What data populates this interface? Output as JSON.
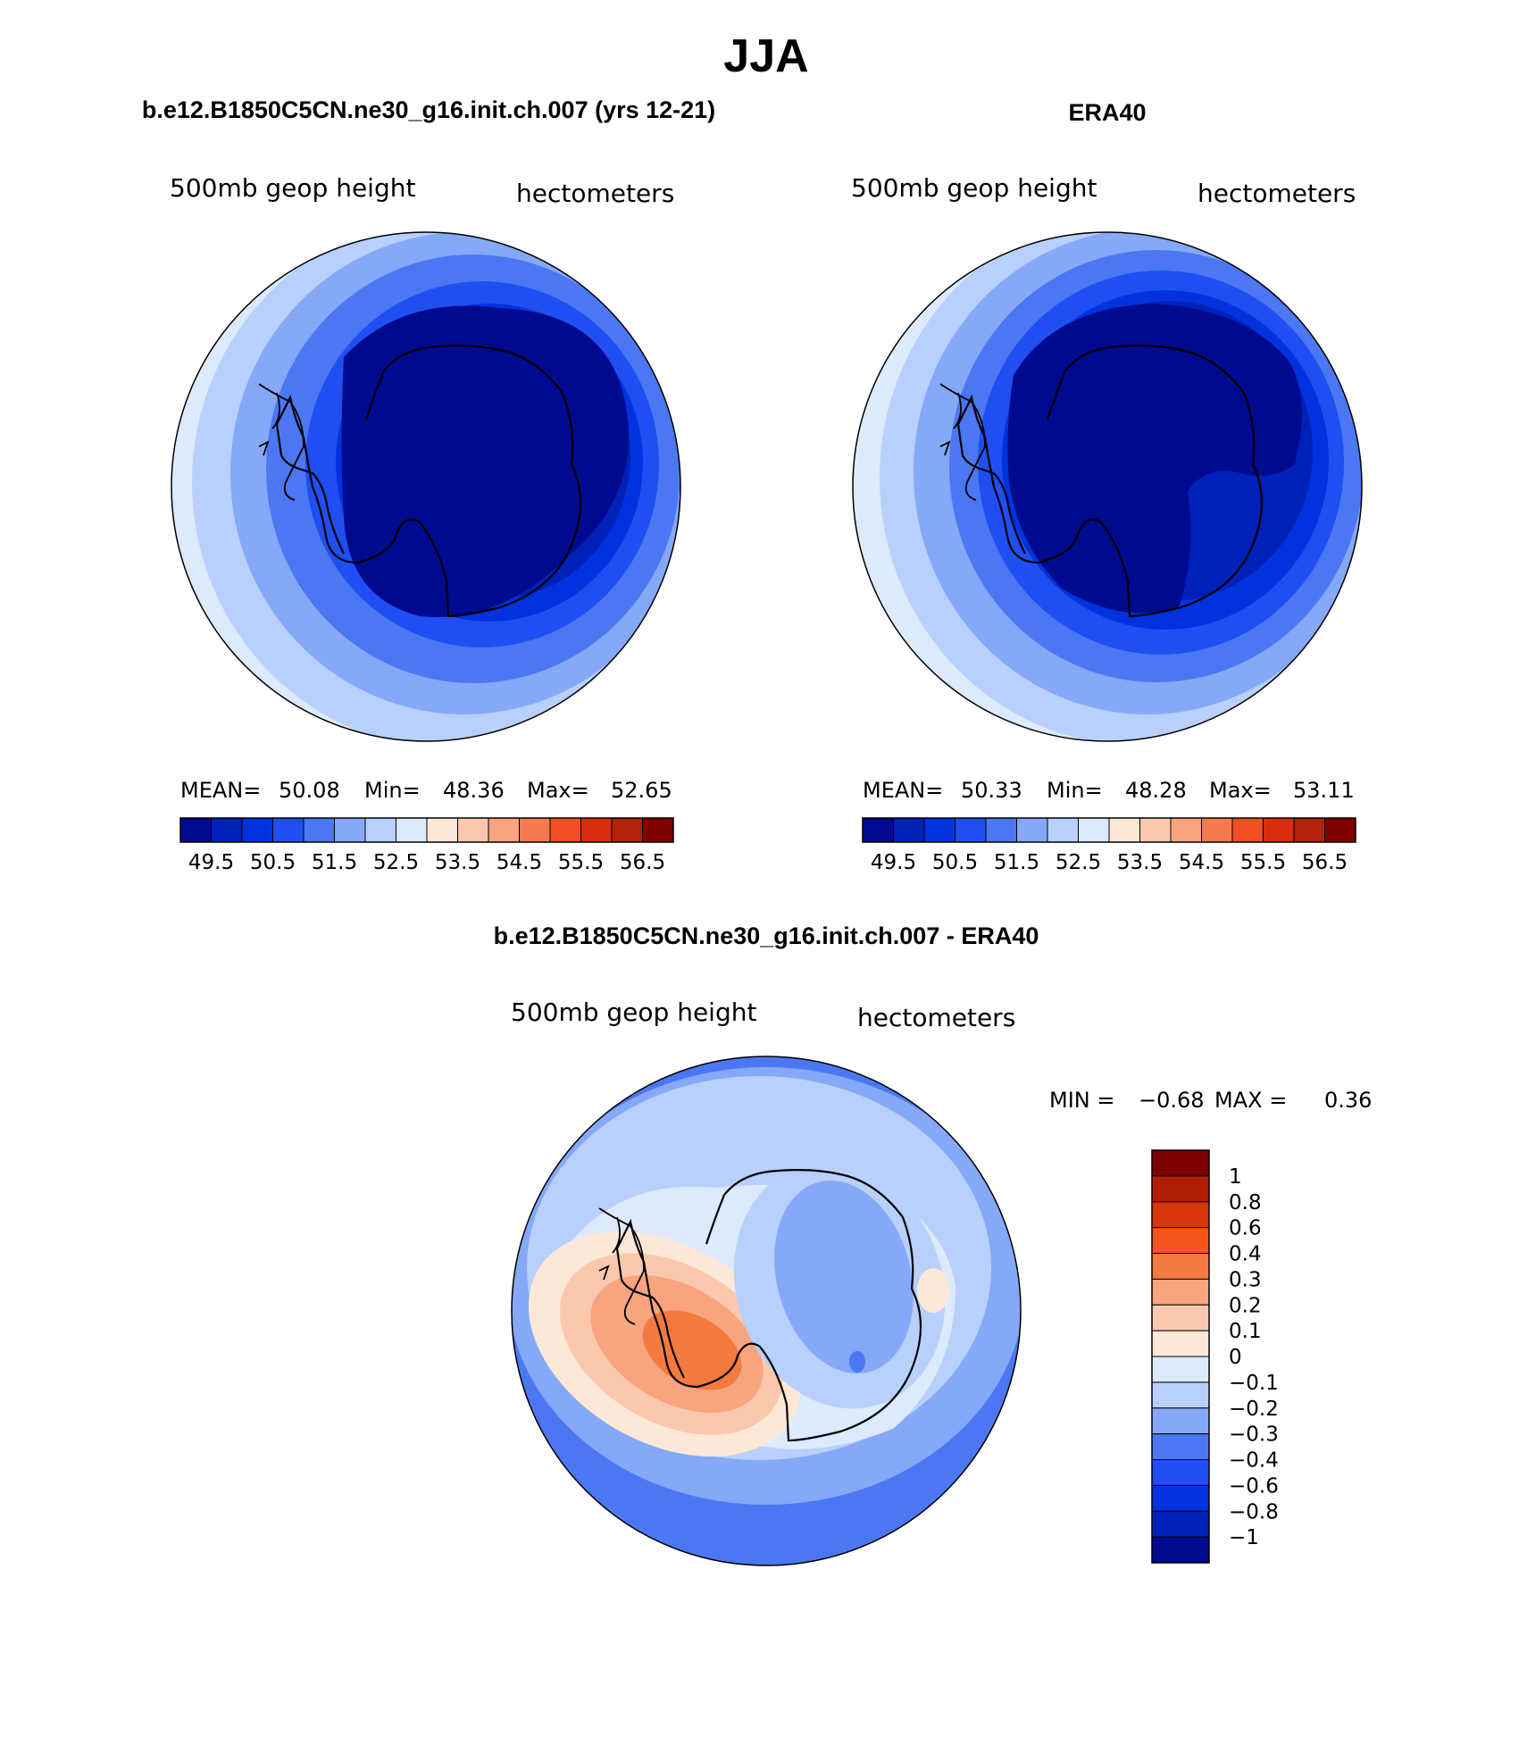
{
  "page_title": "JJA",
  "chart_data": [
    {
      "type": "polar-contour-map",
      "title": "b.e12.B1850C5CN.ne30_g16.init.ch.007 (yrs 12-21)",
      "left_label": "500mb geop height",
      "right_label": "hectometers",
      "stats": {
        "mean_label": "MEAN=",
        "mean": "50.08",
        "min_label": "Min=",
        "min": "48.36",
        "max_label": "Max=",
        "max": "52.65"
      },
      "colorbar_ticks": [
        "49.5",
        "50.5",
        "51.5",
        "52.5",
        "53.5",
        "54.5",
        "55.5",
        "56.5"
      ],
      "colorbar_colors": [
        "#000a8f",
        "#0021b8",
        "#0033dd",
        "#1f4ff2",
        "#4b78f2",
        "#86a8f8",
        "#b8d0fb",
        "#dceafc",
        "#fde8d8",
        "#fbc8ae",
        "#f8a47e",
        "#f57a4d",
        "#f24f23",
        "#d92e0e",
        "#b3200b",
        "#800000"
      ],
      "contours": [
        {
          "level": "51.5",
          "color": "#b8d0fb"
        },
        {
          "level": "51.0",
          "color": "#86a8f8"
        },
        {
          "level": "50.5",
          "color": "#4b78f2"
        },
        {
          "level": "50.0",
          "color": "#1f4ff2"
        },
        {
          "level": "49.5",
          "color": "#0033dd"
        },
        {
          "level": "49.0",
          "color": "#0021b8"
        },
        {
          "level": "48.5",
          "color": "#000a8f"
        }
      ]
    },
    {
      "type": "polar-contour-map",
      "title": "ERA40",
      "left_label": "500mb geop height",
      "right_label": "hectometers",
      "stats": {
        "mean_label": "MEAN=",
        "mean": "50.33",
        "min_label": "Min=",
        "min": "48.28",
        "max_label": "Max=",
        "max": "53.11"
      },
      "colorbar_ticks": [
        "49.5",
        "50.5",
        "51.5",
        "52.5",
        "53.5",
        "54.5",
        "55.5",
        "56.5"
      ],
      "colorbar_colors": [
        "#000a8f",
        "#0021b8",
        "#0033dd",
        "#1f4ff2",
        "#4b78f2",
        "#86a8f8",
        "#b8d0fb",
        "#dceafc",
        "#fde8d8",
        "#fbc8ae",
        "#f8a47e",
        "#f57a4d",
        "#f24f23",
        "#d92e0e",
        "#b3200b",
        "#800000"
      ],
      "contours": [
        {
          "level": "52.0",
          "color": "#dceafc"
        },
        {
          "level": "51.5",
          "color": "#b8d0fb"
        },
        {
          "level": "51.0",
          "color": "#86a8f8"
        },
        {
          "level": "50.5",
          "color": "#4b78f2"
        },
        {
          "level": "50.0",
          "color": "#1f4ff2"
        },
        {
          "level": "49.5",
          "color": "#0033dd"
        },
        {
          "level": "49.0",
          "color": "#0021b8"
        },
        {
          "level": "48.5",
          "color": "#000a8f"
        }
      ]
    },
    {
      "type": "polar-contour-map-difference",
      "title": "b.e12.B1850C5CN.ne30_g16.init.ch.007 - ERA40",
      "left_label": "500mb geop height",
      "right_label": "hectometers",
      "stats": {
        "min_label": "MIN =",
        "min": "−0.68",
        "max_label": "MAX =",
        "max": "0.36"
      },
      "colorbar_ticks": [
        "1",
        "0.8",
        "0.6",
        "0.4",
        "0.3",
        "0.2",
        "0.1",
        "0",
        "−0.1",
        "−0.2",
        "−0.3",
        "−0.4",
        "−0.6",
        "−0.8",
        "−1"
      ],
      "colorbar_colors": [
        "#7f0000",
        "#b01f05",
        "#d9360b",
        "#f2541c",
        "#f57a3f",
        "#f8a47e",
        "#fbc8ae",
        "#fde8d8",
        "#dceafc",
        "#b8d0fb",
        "#86a8f8",
        "#4b78f2",
        "#1f4ff2",
        "#0033dd",
        "#0021b8",
        "#000a8f"
      ]
    }
  ]
}
